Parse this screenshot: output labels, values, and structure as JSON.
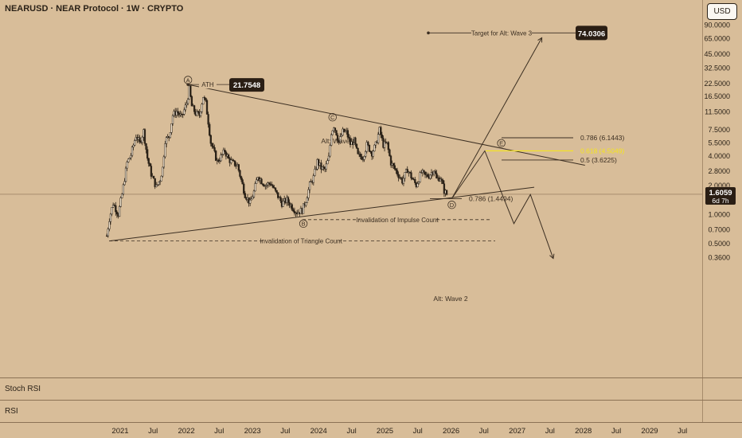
{
  "header": {
    "title": "NEARUSD · NEAR Protocol · 1W · CRYPTO",
    "currency": "USD"
  },
  "colors": {
    "background": "#d8bd99",
    "candle": "#2b2218",
    "highlight_fib": "#f5e51e",
    "label_box": "#2a1e14"
  },
  "chart_data": {
    "type": "candlestick",
    "y_scale": "log",
    "y_ticks": [
      "90.0000",
      "65.0000",
      "45.0000",
      "32.5000",
      "22.5000",
      "16.5000",
      "11.5000",
      "7.5000",
      "5.5000",
      "4.0000",
      "2.8000",
      "2.0000",
      "1.0000",
      "0.7000",
      "0.5000",
      "0.3600"
    ],
    "x_ticks": [
      "2021",
      "Jul",
      "2022",
      "Jul",
      "2023",
      "Jul",
      "2024",
      "Jul",
      "2025",
      "Jul",
      "2026",
      "Jul",
      "2027",
      "Jul",
      "2028",
      "Jul",
      "2029",
      "Jul"
    ],
    "last_price": "1.6059",
    "countdown": "6d 7h",
    "price_path": [
      [
        "2020-10-19",
        0.6
      ],
      [
        "2020-11-02",
        0.9
      ],
      [
        "2020-11-23",
        1.3
      ],
      [
        "2020-12-21",
        1.0
      ],
      [
        "2021-01-11",
        1.6
      ],
      [
        "2021-02-08",
        3.4
      ],
      [
        "2021-03-01",
        4.1
      ],
      [
        "2021-03-29",
        6.5
      ],
      [
        "2021-04-19",
        5.4
      ],
      [
        "2021-05-10",
        7.2
      ],
      [
        "2021-05-31",
        3.8
      ],
      [
        "2021-06-21",
        2.6
      ],
      [
        "2021-07-19",
        1.9
      ],
      [
        "2021-08-09",
        2.3
      ],
      [
        "2021-08-23",
        3.0
      ],
      [
        "2021-09-06",
        5.8
      ],
      [
        "2021-09-27",
        6.3
      ],
      [
        "2021-10-18",
        10.5
      ],
      [
        "2021-11-08",
        11.5
      ],
      [
        "2021-12-06",
        10.0
      ],
      [
        "2022-01-03",
        14.0
      ],
      [
        "2022-01-17",
        19.5
      ],
      [
        "2022-01-31",
        13.0
      ],
      [
        "2022-02-21",
        11.0
      ],
      [
        "2022-03-14",
        10.5
      ],
      [
        "2022-04-04",
        16.5
      ],
      [
        "2022-04-18",
        14.0
      ],
      [
        "2022-05-02",
        9.0
      ],
      [
        "2022-05-16",
        5.5
      ],
      [
        "2022-06-06",
        4.2
      ],
      [
        "2022-06-20",
        3.5
      ],
      [
        "2022-07-11",
        3.9
      ],
      [
        "2022-08-01",
        4.5
      ],
      [
        "2022-08-22",
        3.7
      ],
      [
        "2022-09-12",
        3.4
      ],
      [
        "2022-10-10",
        3.2
      ],
      [
        "2022-11-07",
        2.0
      ],
      [
        "2022-11-21",
        1.6
      ],
      [
        "2022-12-19",
        1.3
      ],
      [
        "2023-01-09",
        1.7
      ],
      [
        "2023-01-30",
        2.5
      ],
      [
        "2023-02-20",
        2.2
      ],
      [
        "2023-03-13",
        2.0
      ],
      [
        "2023-04-10",
        2.1
      ],
      [
        "2023-05-08",
        1.7
      ],
      [
        "2023-06-12",
        1.3
      ],
      [
        "2023-07-10",
        1.4
      ],
      [
        "2023-08-14",
        1.15
      ],
      [
        "2023-09-04",
        1.05
      ],
      [
        "2023-10-02",
        1.1
      ],
      [
        "2023-10-23",
        1.4
      ],
      [
        "2023-11-13",
        2.0
      ],
      [
        "2023-12-04",
        2.4
      ],
      [
        "2023-12-25",
        3.5
      ],
      [
        "2024-01-15",
        3.0
      ],
      [
        "2024-02-05",
        2.9
      ],
      [
        "2024-02-26",
        3.8
      ],
      [
        "2024-03-11",
        7.0
      ],
      [
        "2024-03-25",
        8.2
      ],
      [
        "2024-04-08",
        6.9
      ],
      [
        "2024-04-22",
        5.5
      ],
      [
        "2024-05-13",
        7.1
      ],
      [
        "2024-06-03",
        7.0
      ],
      [
        "2024-06-24",
        5.3
      ],
      [
        "2024-07-15",
        5.7
      ],
      [
        "2024-08-05",
        4.0
      ],
      [
        "2024-09-02",
        3.9
      ],
      [
        "2024-09-23",
        5.2
      ],
      [
        "2024-10-21",
        4.3
      ],
      [
        "2024-11-11",
        5.2
      ],
      [
        "2024-12-02",
        7.4
      ],
      [
        "2024-12-23",
        5.2
      ],
      [
        "2025-01-13",
        5.3
      ],
      [
        "2025-02-03",
        3.4
      ],
      [
        "2025-03-03",
        2.8
      ],
      [
        "2025-04-07",
        2.2
      ],
      [
        "2025-05-05",
        2.9
      ],
      [
        "2025-06-02",
        2.3
      ],
      [
        "2025-06-23",
        2.0
      ],
      [
        "2025-07-21",
        2.7
      ],
      [
        "2025-08-11",
        2.5
      ],
      [
        "2025-09-01",
        2.5
      ],
      [
        "2025-09-29",
        2.9
      ],
      [
        "2025-10-13",
        2.3
      ],
      [
        "2025-11-03",
        2.4
      ],
      [
        "2025-11-24",
        1.75
      ],
      [
        "2025-12-08",
        1.6059
      ]
    ],
    "wave_labels": [
      {
        "text": "A",
        "date": "2022-01-10",
        "price": 24.2
      },
      {
        "text": "B",
        "date": "2023-10-09",
        "price": 0.8
      },
      {
        "text": "C",
        "date": "2024-03-18",
        "price": 10.0
      },
      {
        "text": "D",
        "date": "2026-01-05",
        "price": 1.25
      },
      {
        "text": "E",
        "date": "2026-10-05",
        "price": 5.4
      }
    ],
    "annotations": {
      "ath_label": "ATH",
      "ath_value": "21.7548",
      "target_label": "Target for Alt: Wave 3",
      "target_value": "74.0306",
      "alt_wave_1": "Alt: Wave 1",
      "alt_wave_2": "Alt: Wave 2",
      "invalidation_impulse": "Invalidation of Impulse Count",
      "invalidation_triangle": "Invalidation of Triangle Count",
      "fib_0786_upper": "0.786 (6.1443)",
      "fib_0618": "0.618 (4.5049)",
      "fib_05": "0.5 (3.6225)",
      "fib_0786_lower": "0.786 (1.4494)"
    },
    "trendlines": [
      {
        "name": "triangle-upper",
        "from": [
          "2022-01-10",
          21.7548
        ],
        "to": [
          "2028-01-10",
          3.2
        ]
      },
      {
        "name": "triangle-lower",
        "from": [
          "2020-11-02",
          0.53
        ],
        "to": [
          "2027-04-05",
          1.9
        ]
      },
      {
        "name": "alt-wave-3-path",
        "from": [
          "2026-01-05",
          1.45
        ],
        "to": [
          "2027-05-17",
          66
        ]
      },
      {
        "name": "triangle-projection",
        "path": [
          [
            "2026-01-05",
            1.45
          ],
          [
            "2026-07-06",
            4.5
          ],
          [
            "2026-12-14",
            0.8
          ],
          [
            "2027-03-15",
            1.6
          ],
          [
            "2027-07-19",
            0.35
          ]
        ]
      }
    ],
    "horizontal_levels": [
      {
        "name": "impulse-invalidation",
        "price": 0.88
      },
      {
        "name": "triangle-invalidation",
        "price": 0.53
      }
    ]
  },
  "panes": {
    "stoch_rsi": "Stoch RSI",
    "rsi": "RSI"
  }
}
